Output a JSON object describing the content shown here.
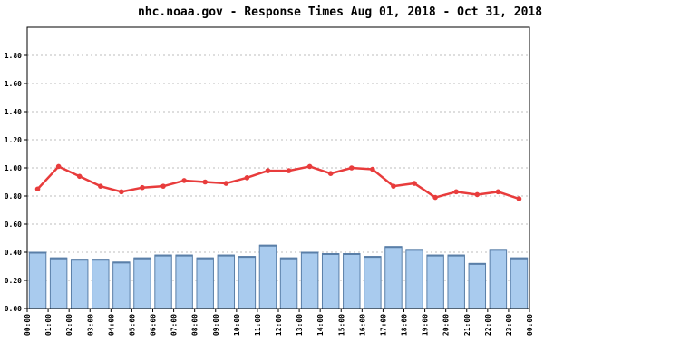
{
  "chart_data": {
    "type": "bar",
    "title": "nhc.noaa.gov - Response Times Aug 01, 2018 - Oct 31, 2018",
    "categories": [
      "00:00",
      "01:00",
      "02:00",
      "03:00",
      "04:00",
      "05:00",
      "06:00",
      "07:00",
      "08:00",
      "09:00",
      "10:00",
      "11:00",
      "12:00",
      "13:00",
      "14:00",
      "15:00",
      "16:00",
      "17:00",
      "18:00",
      "19:00",
      "20:00",
      "21:00",
      "22:00",
      "23:00"
    ],
    "x_tick_labels": [
      "00:00",
      "01:00",
      "02:00",
      "03:00",
      "04:00",
      "05:00",
      "06:00",
      "07:00",
      "08:00",
      "09:00",
      "10:00",
      "11:00",
      "12:00",
      "13:00",
      "14:00",
      "15:00",
      "16:00",
      "17:00",
      "18:00",
      "19:00",
      "20:00",
      "21:00",
      "22:00",
      "23:00",
      "00:00"
    ],
    "y_tick_labels": [
      "0.00",
      "0.20",
      "0.40",
      "0.60",
      "0.80",
      "1.00",
      "1.20",
      "1.40",
      "1.60",
      "1.80"
    ],
    "ylim": [
      0,
      2.0
    ],
    "grid": true,
    "series": [
      {
        "kind": "bar",
        "color": "#a9cbee",
        "edge_color": "#5a7fa8",
        "values": [
          0.4,
          0.36,
          0.35,
          0.35,
          0.33,
          0.36,
          0.38,
          0.38,
          0.36,
          0.38,
          0.37,
          0.45,
          0.36,
          0.4,
          0.39,
          0.39,
          0.37,
          0.44,
          0.42,
          0.38,
          0.38,
          0.32,
          0.42,
          0.36
        ]
      },
      {
        "kind": "line",
        "color": "#e83c3c",
        "values": [
          0.85,
          1.01,
          0.94,
          0.87,
          0.83,
          0.86,
          0.87,
          0.91,
          0.9,
          0.89,
          0.93,
          0.98,
          0.98,
          1.01,
          0.96,
          1.0,
          0.99,
          0.87,
          0.89,
          0.79,
          0.83,
          0.81,
          0.83,
          0.78
        ]
      }
    ]
  }
}
